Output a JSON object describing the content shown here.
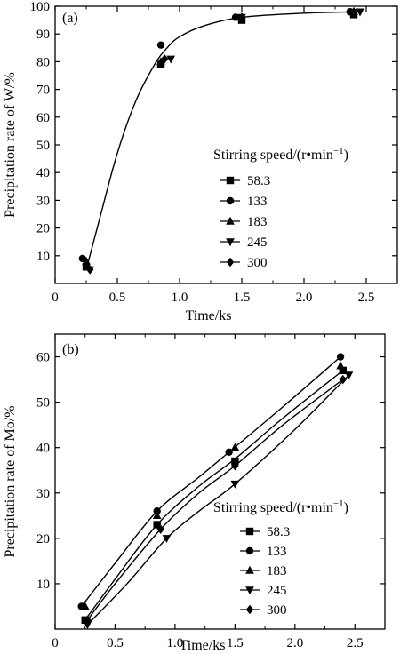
{
  "chart_data": [
    {
      "type": "scatter",
      "panel_label": "(a)",
      "xlabel": "Time/ks",
      "ylabel": "Precipitation rate of W/%",
      "xlim": [
        0,
        2.75
      ],
      "ylim": [
        0,
        100
      ],
      "xticks": [
        "0",
        "0.5",
        "1.0",
        "1.5",
        "2.0",
        "2.5"
      ],
      "yticks": [
        "10",
        "20",
        "30",
        "40",
        "50",
        "60",
        "70",
        "80",
        "90",
        "100"
      ],
      "legend_title": "Stirring speed/(r•min",
      "legend_title_sup": "−1",
      "legend_title_close": ")",
      "legend_position": "center-right",
      "series": [
        {
          "name": "58.3",
          "marker": "square",
          "x": [
            0.25,
            0.85,
            1.5,
            2.4
          ],
          "y": [
            6,
            79,
            95,
            97
          ]
        },
        {
          "name": "133",
          "marker": "circle",
          "x": [
            0.22,
            0.85,
            1.45,
            2.37
          ],
          "y": [
            9,
            86,
            96,
            98
          ]
        },
        {
          "name": "183",
          "marker": "triangle-up",
          "x": [
            0.25,
            0.85,
            1.5,
            2.4
          ],
          "y": [
            8,
            80,
            96,
            98
          ]
        },
        {
          "name": "245",
          "marker": "triangle-down",
          "x": [
            0.28,
            0.93,
            1.5,
            2.45
          ],
          "y": [
            5,
            81,
            96,
            98
          ]
        },
        {
          "name": "300",
          "marker": "diamond",
          "x": [
            0.28,
            0.88,
            1.5,
            2.4
          ],
          "y": [
            5,
            81,
            96,
            98
          ]
        }
      ],
      "fit_curves": [
        {
          "x": [
            0.25,
            0.35,
            0.5,
            0.65,
            0.8,
            0.9,
            1.0,
            1.2,
            1.5,
            2.0,
            2.45
          ],
          "y": [
            5,
            22,
            47,
            66,
            79,
            85,
            89,
            93,
            96,
            97.5,
            98
          ]
        }
      ]
    },
    {
      "type": "scatter",
      "panel_label": "(b)",
      "xlabel": "Time/ks",
      "ylabel": "Precipitation rate of Mo/%",
      "xlim": [
        0,
        2.75
      ],
      "ylim": [
        0,
        65
      ],
      "xticks": [
        "0",
        "0.5",
        "1.0",
        "1.5",
        "2.0",
        "2.5"
      ],
      "yticks": [
        "10",
        "20",
        "30",
        "40",
        "50",
        "60"
      ],
      "legend_title": "Stirring speed/(r•min",
      "legend_title_sup": "−1",
      "legend_title_close": ")",
      "legend_position": "lower-right",
      "series": [
        {
          "name": "58.3",
          "marker": "square",
          "x": [
            0.25,
            0.85,
            1.5,
            2.4
          ],
          "y": [
            2,
            23,
            37,
            57
          ]
        },
        {
          "name": "133",
          "marker": "circle",
          "x": [
            0.22,
            0.85,
            1.45,
            2.38
          ],
          "y": [
            5,
            26,
            39,
            60
          ]
        },
        {
          "name": "183",
          "marker": "triangle-up",
          "x": [
            0.25,
            0.85,
            1.5,
            2.38
          ],
          "y": [
            5,
            25,
            40,
            58
          ]
        },
        {
          "name": "245",
          "marker": "triangle-down",
          "x": [
            0.27,
            0.93,
            1.5,
            2.45
          ],
          "y": [
            1,
            20,
            32,
            56
          ]
        },
        {
          "name": "300",
          "marker": "diamond",
          "x": [
            0.27,
            0.88,
            1.5,
            2.4
          ],
          "y": [
            2,
            22,
            36,
            55
          ]
        }
      ],
      "fit_curves": [
        {
          "x": [
            0.22,
            0.5,
            0.85,
            1.2,
            1.45,
            1.9,
            2.38
          ],
          "y": [
            5,
            14.5,
            26,
            33.5,
            39,
            49,
            60
          ]
        },
        {
          "x": [
            0.25,
            0.5,
            0.85,
            1.2,
            1.5,
            1.9,
            2.4
          ],
          "y": [
            2,
            11,
            23,
            31.5,
            37.5,
            46.5,
            57
          ]
        },
        {
          "x": [
            0.27,
            0.5,
            0.88,
            1.2,
            1.5,
            1.9,
            2.4
          ],
          "y": [
            2,
            10,
            22,
            30,
            36,
            45,
            55
          ]
        },
        {
          "x": [
            0.27,
            0.6,
            0.93,
            1.2,
            1.5,
            2.0,
            2.45
          ],
          "y": [
            1,
            10,
            20,
            26,
            32,
            44,
            56
          ]
        }
      ]
    }
  ]
}
